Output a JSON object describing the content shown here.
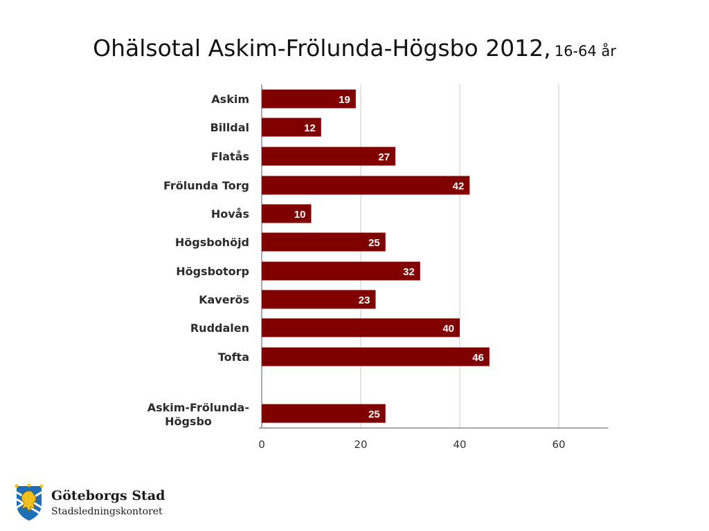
{
  "title": {
    "main": "Ohälsotal Askim-Frölunda-Högsbo 2012,",
    "sub": "16-64 år"
  },
  "chart_data": {
    "type": "bar",
    "orientation": "horizontal",
    "categories": [
      "Askim",
      "Billdal",
      "Flatås",
      "Frölunda Torg",
      "Hovås",
      "Högsbohöjd",
      "Högsbotorp",
      "Kaverös",
      "Ruddalen",
      "Tofta",
      "Askim-Frölunda-Högsbo"
    ],
    "values": [
      19,
      12,
      27,
      42,
      10,
      25,
      32,
      23,
      40,
      46,
      25
    ],
    "data_labels": [
      "19",
      "12",
      "27",
      "42",
      "10",
      "25",
      "32",
      "23",
      "40",
      "46",
      "25"
    ],
    "xlim": [
      0,
      70
    ],
    "xticks": [
      "0",
      "20",
      "40",
      "60"
    ],
    "grid": true,
    "legend": "none",
    "bar_color": "#800000"
  },
  "footer": {
    "logo_icon": "goteborg-lion-shield-icon",
    "org_name": "Göteborgs Stad",
    "department": "Stadsledningskontoret"
  }
}
